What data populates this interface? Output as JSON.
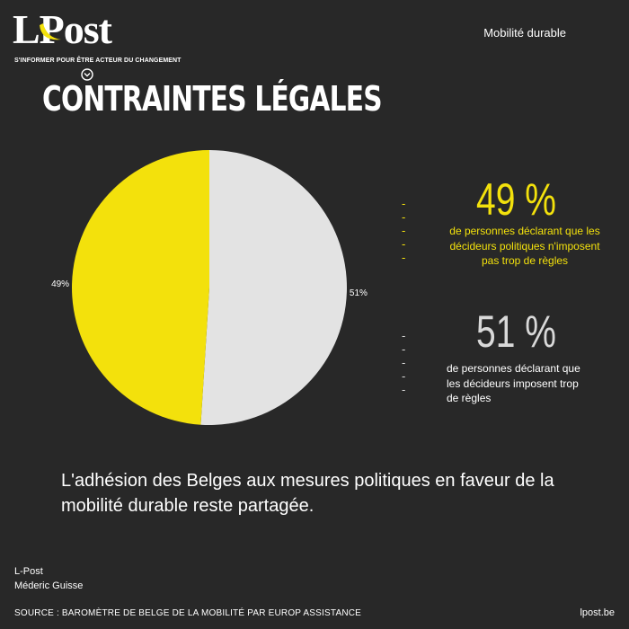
{
  "brand": {
    "logo_text": "LPost",
    "tagline": "S'INFORMER POUR ÊTRE ACTEUR DU CHANGEMENT",
    "category": "Mobilité durable",
    "site": "lpost.be"
  },
  "title": "CONTRAINTES LÉGALES",
  "colors": {
    "yellow": "#f3e10c",
    "grey": "#e3e3e3",
    "background": "#282828"
  },
  "stats": [
    {
      "dash": "-----",
      "pct": "49 %",
      "desc": "de personnes déclarant que les décideurs politiques n'imposent pas trop de règles"
    },
    {
      "dash": "-----",
      "pct": "51 %",
      "desc": "de personnes déclarant que les décideurs imposent trop de règles"
    }
  ],
  "summary": "L'adhésion des Belges aux mesures politiques en faveur de la mobilité durable reste partagée.",
  "credits": {
    "org": "L-Post",
    "author": "Méderic Guisse"
  },
  "source": "SOURCE : BAROMÈTRE DE BELGE DE LA MOBILITÉ PAR EUROP ASSISTANCE",
  "chart_data": {
    "type": "pie",
    "title": "",
    "slices": [
      {
        "label": "51%",
        "value": 51,
        "color": "#e3e3e3"
      },
      {
        "label": "49%",
        "value": 49,
        "color": "#f3e10c"
      }
    ]
  }
}
